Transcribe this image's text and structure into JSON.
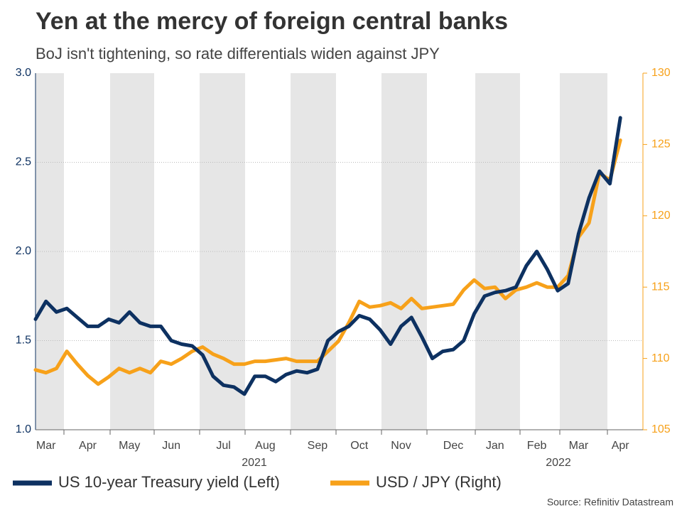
{
  "chart_data": {
    "type": "line",
    "title": "Yen at the mercy of foreign central banks",
    "subtitle": "BoJ isn't tightening, so rate differentials widen against JPY",
    "source": "Source: Refinitiv Datastream",
    "year_labels": [
      "2021",
      "2022"
    ],
    "categories": [
      null,
      "Mar",
      null,
      null,
      null,
      "Apr",
      null,
      null,
      null,
      "May",
      null,
      null,
      null,
      "Jun",
      null,
      null,
      null,
      null,
      "Jul",
      null,
      null,
      null,
      "Aug",
      null,
      null,
      null,
      null,
      "Sep",
      null,
      null,
      null,
      "Oct",
      null,
      null,
      null,
      "Nov",
      null,
      null,
      null,
      null,
      "Dec",
      null,
      null,
      null,
      "Jan",
      null,
      null,
      null,
      "Feb",
      null,
      null,
      null,
      "Mar",
      null,
      null,
      null,
      "Apr"
    ],
    "ylim": [
      1.0,
      3.0
    ],
    "yticks": [
      {
        "value": 1.0,
        "label": "1.0"
      },
      {
        "value": 1.5,
        "label": "1.5"
      },
      {
        "value": 2.0,
        "label": "2.0"
      },
      {
        "value": 2.5,
        "label": "2.5"
      },
      {
        "value": 3.0,
        "label": "3.0"
      }
    ],
    "y2lim": [
      105,
      130
    ],
    "y2ticks": [
      105,
      110,
      115,
      120,
      125,
      130
    ],
    "grid": true,
    "legend": "bottom",
    "series": [
      {
        "name": "US 10-year Treasury yield (Left)",
        "color": "#0d3161",
        "axis": "y",
        "values": [
          1.62,
          1.72,
          1.66,
          1.68,
          1.63,
          1.58,
          1.58,
          1.62,
          1.6,
          1.66,
          1.6,
          1.58,
          1.58,
          1.5,
          1.48,
          1.47,
          1.42,
          1.3,
          1.25,
          1.24,
          1.2,
          1.3,
          1.3,
          1.27,
          1.31,
          1.33,
          1.32,
          1.34,
          1.5,
          1.55,
          1.58,
          1.64,
          1.62,
          1.56,
          1.48,
          1.58,
          1.63,
          1.52,
          1.4,
          1.44,
          1.45,
          1.5,
          1.65,
          1.75,
          1.77,
          1.78,
          1.8,
          1.92,
          2.0,
          1.9,
          1.78,
          1.82,
          2.1,
          2.3,
          2.45,
          2.38,
          2.75
        ]
      },
      {
        "name": "USD / JPY (Right)",
        "color": "#f7a11a",
        "axis": "y2",
        "values": [
          109.2,
          109.0,
          109.3,
          110.5,
          109.6,
          108.8,
          108.2,
          108.7,
          109.3,
          109.0,
          109.3,
          109.0,
          109.8,
          109.6,
          110.0,
          110.5,
          110.8,
          110.3,
          110.0,
          109.6,
          109.6,
          109.8,
          109.8,
          109.9,
          110.0,
          109.8,
          109.8,
          109.8,
          110.5,
          111.2,
          112.5,
          114.0,
          113.6,
          113.7,
          113.9,
          113.5,
          114.2,
          113.5,
          113.6,
          113.7,
          113.8,
          114.8,
          115.5,
          114.9,
          115.0,
          114.2,
          114.8,
          115.0,
          115.3,
          115.0,
          115.0,
          115.8,
          118.5,
          119.5,
          123.0,
          122.5,
          125.3
        ]
      }
    ]
  }
}
